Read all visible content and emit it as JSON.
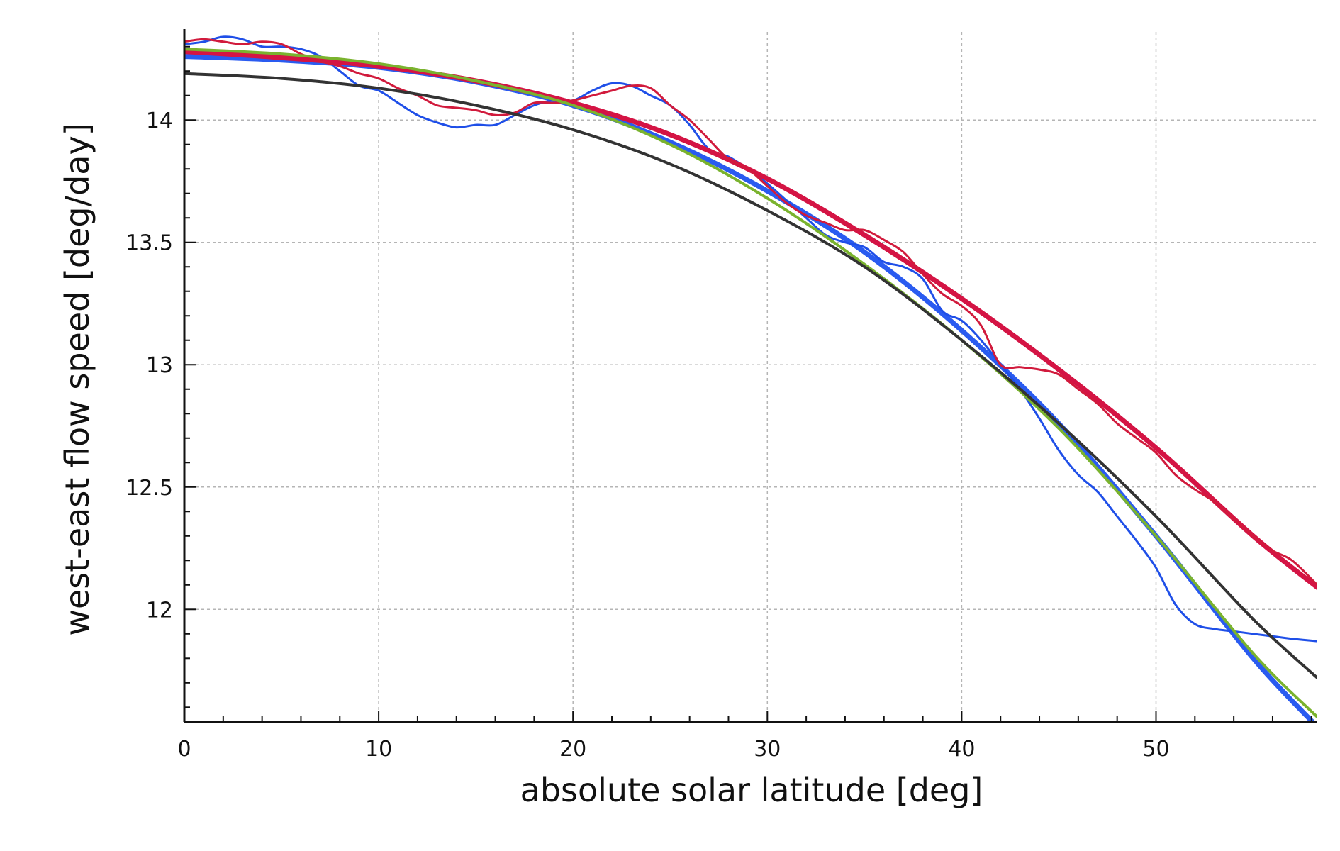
{
  "chart_data": {
    "type": "line",
    "xlabel": "absolute solar latitude [deg]",
    "ylabel": "west-east flow speed [deg/day]",
    "xlim": [
      0,
      58.3
    ],
    "ylim": [
      11.54,
      14.36
    ],
    "xticks": [
      0,
      10,
      20,
      30,
      40,
      50
    ],
    "yticks": [
      12,
      12.5,
      13,
      13.5,
      14
    ],
    "ytick_labels": [
      "12",
      "12.5",
      "13",
      "13.5",
      "14"
    ],
    "grid": true,
    "grid_style": "dotted",
    "series": [
      {
        "color": "#2a5bf0",
        "width": 7,
        "x": [
          0,
          5,
          10,
          15,
          20,
          25,
          30,
          35,
          40,
          45,
          50,
          55,
          58.3
        ],
        "y": [
          14.26,
          14.245,
          14.215,
          14.155,
          14.06,
          13.91,
          13.71,
          13.46,
          13.14,
          12.76,
          12.3,
          11.8,
          11.52
        ]
      },
      {
        "color": "#1f4fe8",
        "width": 3,
        "x": [
          0,
          1,
          2,
          3,
          4,
          5,
          6,
          7,
          8,
          9,
          10,
          11,
          12,
          13,
          14,
          15,
          16,
          17,
          18,
          19,
          20,
          21,
          22,
          23,
          24,
          25,
          26,
          27,
          28,
          29,
          30,
          31,
          32,
          33,
          34,
          35,
          36,
          37,
          38,
          39,
          40,
          41,
          42,
          43,
          44,
          45,
          46,
          47,
          48,
          49,
          50,
          51,
          52,
          53,
          54,
          55,
          56,
          57,
          58.3
        ],
        "y": [
          14.31,
          14.32,
          14.34,
          14.33,
          14.3,
          14.3,
          14.29,
          14.26,
          14.2,
          14.14,
          14.12,
          14.07,
          14.02,
          13.99,
          13.97,
          13.98,
          13.98,
          14.02,
          14.06,
          14.08,
          14.08,
          14.12,
          14.15,
          14.14,
          14.1,
          14.06,
          13.98,
          13.88,
          13.85,
          13.8,
          13.74,
          13.67,
          13.6,
          13.53,
          13.5,
          13.48,
          13.42,
          13.4,
          13.35,
          13.22,
          13.18,
          13.1,
          13.0,
          12.9,
          12.78,
          12.65,
          12.55,
          12.48,
          12.38,
          12.28,
          12.17,
          12.02,
          11.94,
          11.92,
          11.91,
          11.9,
          11.89,
          11.88,
          11.87
        ]
      },
      {
        "color": "#d41444",
        "width": 7,
        "x": [
          0,
          5,
          10,
          15,
          20,
          25,
          30,
          35,
          40,
          45,
          50,
          55,
          58.3
        ],
        "y": [
          14.28,
          14.255,
          14.22,
          14.16,
          14.07,
          13.94,
          13.76,
          13.53,
          13.27,
          12.98,
          12.66,
          12.3,
          12.09
        ]
      },
      {
        "color": "#d11a3c",
        "width": 3,
        "x": [
          0,
          1,
          2,
          3,
          4,
          5,
          6,
          7,
          8,
          9,
          10,
          11,
          12,
          13,
          14,
          15,
          16,
          17,
          18,
          19,
          20,
          21,
          22,
          23,
          24,
          25,
          26,
          27,
          28,
          29,
          30,
          31,
          32,
          33,
          34,
          35,
          36,
          37,
          38,
          39,
          40,
          41,
          42,
          43,
          44,
          45,
          46,
          47,
          48,
          49,
          50,
          51,
          52,
          53,
          54,
          55,
          56,
          57,
          58.3
        ],
        "y": [
          14.32,
          14.33,
          14.32,
          14.31,
          14.32,
          14.31,
          14.27,
          14.24,
          14.22,
          14.19,
          14.17,
          14.13,
          14.1,
          14.06,
          14.05,
          14.04,
          14.02,
          14.03,
          14.07,
          14.07,
          14.08,
          14.1,
          14.12,
          14.14,
          14.13,
          14.06,
          14.0,
          13.92,
          13.84,
          13.8,
          13.73,
          13.66,
          13.61,
          13.58,
          13.55,
          13.55,
          13.51,
          13.46,
          13.37,
          13.29,
          13.24,
          13.16,
          13.0,
          12.99,
          12.98,
          12.96,
          12.9,
          12.84,
          12.76,
          12.7,
          12.64,
          12.55,
          12.49,
          12.44,
          12.37,
          12.3,
          12.24,
          12.2,
          12.1
        ]
      },
      {
        "color": "#7ab32e",
        "width": 4,
        "x": [
          0,
          5,
          10,
          15,
          20,
          25,
          30,
          35,
          40,
          45,
          50,
          55,
          58.3
        ],
        "y": [
          14.29,
          14.27,
          14.23,
          14.16,
          14.06,
          13.9,
          13.68,
          13.41,
          13.1,
          12.74,
          12.3,
          11.82,
          11.56
        ]
      },
      {
        "color": "#333333",
        "width": 4,
        "x": [
          0,
          5,
          10,
          15,
          20,
          25,
          30,
          35,
          40,
          45,
          50,
          55,
          58.3
        ],
        "y": [
          14.19,
          14.17,
          14.13,
          14.06,
          13.96,
          13.82,
          13.63,
          13.4,
          13.1,
          12.76,
          12.38,
          11.96,
          11.72
        ]
      }
    ]
  }
}
